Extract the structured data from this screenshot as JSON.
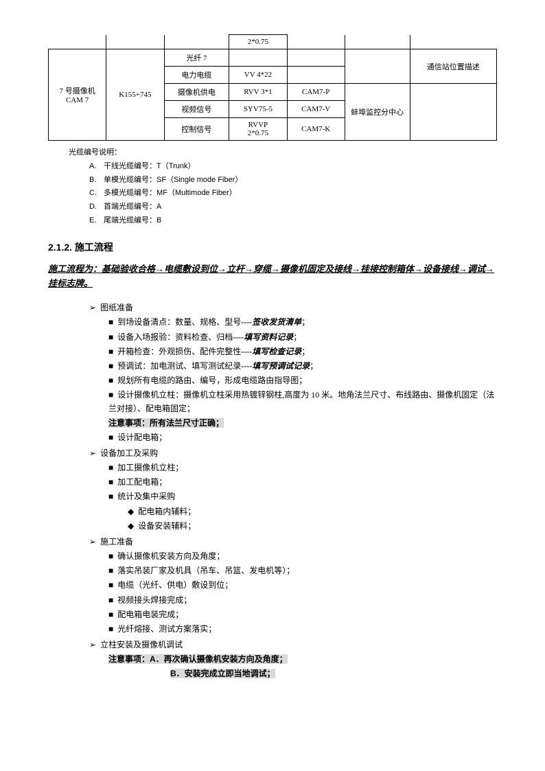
{
  "table": {
    "topCellSpec": "2*0.75",
    "col0": "7 号摄像机\nCAM 7",
    "col1": "K155+745",
    "rows": [
      {
        "c2": "光纤 7",
        "c3": "",
        "c4": "",
        "c5": "",
        "c6": ""
      },
      {
        "c2": "电力电缆",
        "c3": "VV 4*22",
        "c4": "",
        "c5": "",
        "c6": "通信站位置描述"
      },
      {
        "c2": "摄像机供电",
        "c3": "RVV 3*1",
        "c4": "CAM7-P",
        "c5": "",
        "c6": ""
      },
      {
        "c2": "视频信号",
        "c3": "SYV75-5",
        "c4": "CAM7-V",
        "c5": "",
        "c6": ""
      },
      {
        "c2": "控制信号",
        "c3": "RVVP\n2*0.75",
        "c4": "CAM7-K",
        "c5": "",
        "c6": ""
      }
    ],
    "mergedC5": "蚌埠监控分中心"
  },
  "cableNotes": {
    "title": "光缆编号说明：",
    "items": [
      {
        "label": "A.",
        "text": "干线光缆编号：T（Trunk）"
      },
      {
        "label": "B.",
        "text": "单模光缆编号：SF（Single mode Fiber）"
      },
      {
        "label": "C.",
        "text": "多模光缆编号：MF（Multimode Fiber）"
      },
      {
        "label": "D.",
        "text": "首端光缆编号：A"
      },
      {
        "label": "E.",
        "text": "尾端光缆编号：B"
      }
    ]
  },
  "sectionTitle": "2.1.2.  施工流程",
  "flowText": "施工流程为：基础验收合格→电缆敷设到位→立杆→穿缆→摄像机固定及接线→挂接控制箱体→设备接线→调试→挂标志牌。",
  "groups": [
    {
      "title": "图纸准备",
      "items": [
        {
          "pre": "到场设备清点：数量、规格、型号",
          "kai": "----签收发货清单",
          "post": "；"
        },
        {
          "pre": "设备入场报验：资料检查、归档",
          "kai": "----填写资料记录",
          "post": "；"
        },
        {
          "pre": "开箱检查：外观损伤、配件完整性",
          "kai": "----填写检查记录",
          "post": "；"
        },
        {
          "pre": "预调试：加电测试、填写测试纪录",
          "kai": "----填写预调试记录",
          "post": "；"
        },
        {
          "plain": "规划所有电缆的路由、编号，形成电缆路由指导图；"
        },
        {
          "plain": "设计摄像机立柱：摄像机立柱采用热镀锌钢柱,高度为 10 米。地角法兰尺寸、布线路由、摄像机固定（法兰对接）、配电箱固定；"
        },
        {
          "hl": "注意事项：所有法兰尺寸正确；",
          "noMarker": true
        },
        {
          "plain": "设计配电箱；"
        }
      ]
    },
    {
      "title": "设备加工及采购",
      "items": [
        {
          "plain": "加工摄像机立柱；"
        },
        {
          "plain": "加工配电箱；"
        },
        {
          "plain": "统计及集中采购"
        }
      ],
      "sub3": [
        "配电箱内辅料；",
        "设备安装辅料；"
      ]
    },
    {
      "title": "施工准备",
      "items": [
        {
          "plain": "确认摄像机安装方向及角度；"
        },
        {
          "plain": "落实吊装厂家及机具（吊车、吊篮、发电机等）；"
        },
        {
          "plain": "电缆（光纤、供电）敷设到位；"
        },
        {
          "plain": "视频接头焊接完成；"
        },
        {
          "plain": "配电箱电装完成；"
        },
        {
          "plain": "光纤熔接、测试方案落实；"
        }
      ]
    },
    {
      "title": "立柱安装及摄像机调试",
      "attn": [
        "注意事项：A．再次确认摄像机安装方向及角度；",
        "B．安装完成立即当地调试；"
      ]
    }
  ]
}
